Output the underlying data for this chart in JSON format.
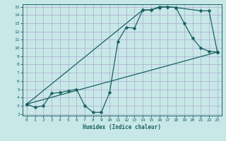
{
  "xlabel": "Humidex (Indice chaleur)",
  "xlim": [
    -0.5,
    23.5
  ],
  "ylim": [
    1.8,
    15.3
  ],
  "xticks": [
    0,
    1,
    2,
    3,
    4,
    5,
    6,
    7,
    8,
    9,
    10,
    11,
    12,
    13,
    14,
    15,
    16,
    17,
    18,
    19,
    20,
    21,
    22,
    23
  ],
  "yticks": [
    2,
    3,
    4,
    5,
    6,
    7,
    8,
    9,
    10,
    11,
    12,
    13,
    14,
    15
  ],
  "background_color": "#c8e8e8",
  "grid_color": "#aaaacc",
  "line_color": "#1a6060",
  "line1_x": [
    0,
    1,
    2,
    3,
    4,
    5,
    6,
    7,
    8,
    9,
    10,
    11,
    12,
    13,
    14,
    15,
    16,
    17,
    18,
    19,
    20,
    21,
    22,
    23
  ],
  "line1_y": [
    3.2,
    2.8,
    3.0,
    4.5,
    4.6,
    4.8,
    5.0,
    3.0,
    2.2,
    2.2,
    4.6,
    10.8,
    12.5,
    12.4,
    14.6,
    14.6,
    14.9,
    15.0,
    14.9,
    13.0,
    11.2,
    10.0,
    9.6,
    9.5
  ],
  "line2_x": [
    0,
    14,
    15,
    16,
    17,
    18,
    21,
    22,
    23
  ],
  "line2_y": [
    3.2,
    14.6,
    14.6,
    15.0,
    15.0,
    14.9,
    14.5,
    14.5,
    9.5
  ],
  "line3_x": [
    0,
    23
  ],
  "line3_y": [
    3.2,
    9.5
  ]
}
